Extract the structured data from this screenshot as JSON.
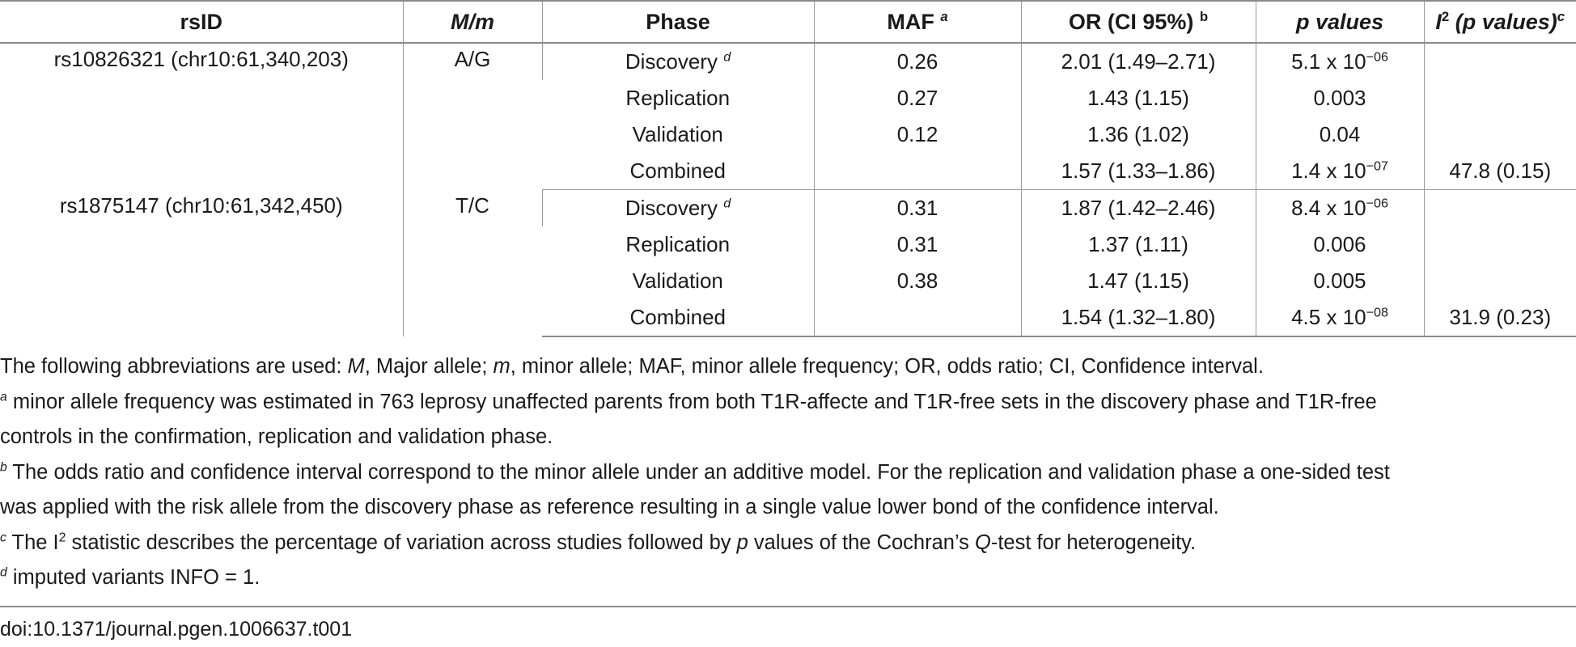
{
  "table": {
    "headers": {
      "rsid": "rsID",
      "mm": "M/m",
      "phase": "Phase",
      "maf": "MAF",
      "maf_sup": "a",
      "or": "OR (CI 95%)",
      "or_sup": "b",
      "p": "p values",
      "i2": "I",
      "i2_sup": "2",
      "i2_rest": "(p values)",
      "i2_note": "c"
    },
    "groups": [
      {
        "rsid": "rs10826321 (chr10:61,340,203)",
        "mm": "A/G",
        "rows": [
          {
            "phase": "Discovery",
            "phase_sup": "d",
            "maf": "0.26",
            "or": "2.01 (1.49–2.71)",
            "p": "5.1 x 10",
            "p_exp": "−06",
            "i2": ""
          },
          {
            "phase": "Replication",
            "phase_sup": "",
            "maf": "0.27",
            "or": "1.43 (1.15)",
            "p": "0.003",
            "p_exp": "",
            "i2": ""
          },
          {
            "phase": "Validation",
            "phase_sup": "",
            "maf": "0.12",
            "or": "1.36 (1.02)",
            "p": "0.04",
            "p_exp": "",
            "i2": ""
          },
          {
            "phase": "Combined",
            "phase_sup": "",
            "maf": "",
            "or": "1.57 (1.33–1.86)",
            "p": "1.4 x 10",
            "p_exp": "−07",
            "i2": "47.8 (0.15)"
          }
        ]
      },
      {
        "rsid": "rs1875147 (chr10:61,342,450)",
        "mm": "T/C",
        "rows": [
          {
            "phase": "Discovery",
            "phase_sup": "d",
            "maf": "0.31",
            "or": "1.87 (1.42–2.46)",
            "p": "8.4 x 10",
            "p_exp": "−06",
            "i2": ""
          },
          {
            "phase": "Replication",
            "phase_sup": "",
            "maf": "0.31",
            "or": "1.37 (1.11)",
            "p": "0.006",
            "p_exp": "",
            "i2": ""
          },
          {
            "phase": "Validation",
            "phase_sup": "",
            "maf": "0.38",
            "or": "1.47 (1.15)",
            "p": "0.005",
            "p_exp": "",
            "i2": ""
          },
          {
            "phase": "Combined",
            "phase_sup": "",
            "maf": "",
            "or": "1.54 (1.32–1.80)",
            "p": "4.5 x 10",
            "p_exp": "−08",
            "i2": "31.9 (0.23)"
          }
        ]
      }
    ]
  },
  "notes": {
    "abbrev": {
      "t1": "The following abbreviations are used: ",
      "M": "M",
      "t2": ", Major allele; ",
      "m": "m",
      "t3": ", minor allele; MAF, minor allele frequency; OR, odds ratio; CI, Confidence interval."
    },
    "a": {
      "mark": "a",
      "line1": " minor allele frequency was estimated in 763 leprosy unaffected parents from both T1R-affecte and T1R-free sets in the discovery phase and T1R-free",
      "line2": "controls in the confirmation, replication and validation phase."
    },
    "b": {
      "mark": "b",
      "line1": " The odds ratio and confidence interval correspond to the minor allele under an additive model. For the replication and validation phase a one-sided test",
      "line2": "was applied with the risk allele from the discovery phase as reference resulting in a single value lower bond of the confidence interval."
    },
    "c": {
      "mark": "c",
      "t1": " The I",
      "sup": "2",
      "t2": " statistic describes the percentage of variation across studies followed by ",
      "p": "p",
      "t3": " values of the Cochran’s ",
      "q": "Q",
      "t4": "-test for heterogeneity."
    },
    "d": {
      "mark": "d",
      "text": " imputed variants INFO = 1."
    }
  },
  "doi": "doi:10.1371/journal.pgen.1006637.t001"
}
